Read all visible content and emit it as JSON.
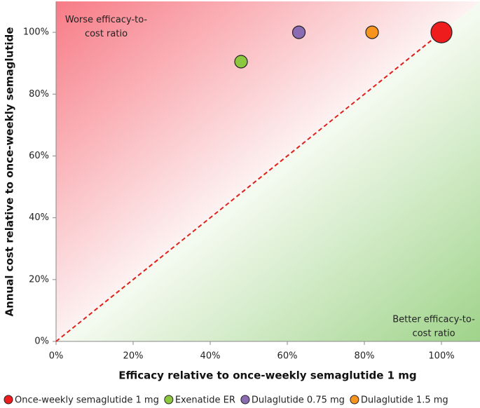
{
  "chart_data": {
    "type": "scatter",
    "x_label": "Efficacy relative to once-weekly semaglutide 1 mg",
    "y_label": "Annual cost relative to once-weekly semaglutide",
    "xlim": [
      0,
      110
    ],
    "ylim": [
      0,
      110
    ],
    "xticks": [
      {
        "value": 0,
        "label": "0%"
      },
      {
        "value": 20,
        "label": "20%"
      },
      {
        "value": 40,
        "label": "40%"
      },
      {
        "value": 60,
        "label": "60%"
      },
      {
        "value": 80,
        "label": "80%"
      },
      {
        "value": 100,
        "label": "100%"
      }
    ],
    "yticks": [
      {
        "value": 0,
        "label": "0%"
      },
      {
        "value": 20,
        "label": "20%"
      },
      {
        "value": 40,
        "label": "40%"
      },
      {
        "value": 60,
        "label": "60%"
      },
      {
        "value": 80,
        "label": "80%"
      },
      {
        "value": 100,
        "label": "100%"
      }
    ],
    "series": [
      {
        "name": "Once-weekly semaglutide 1 mg",
        "color": "#ee1c1c",
        "size": 15,
        "x": [
          100
        ],
        "values": [
          100
        ]
      },
      {
        "name": "Exenatide ER",
        "color": "#8dc63f",
        "size": 9,
        "x": [
          48
        ],
        "values": [
          90.5
        ]
      },
      {
        "name": "Dulaglutide 0.75 mg",
        "color": "#8b6bb1",
        "size": 9,
        "x": [
          63
        ],
        "values": [
          100
        ]
      },
      {
        "name": "Dulaglutide 1.5 mg",
        "color": "#f7941d",
        "size": 9,
        "x": [
          82
        ],
        "values": [
          100
        ]
      }
    ],
    "reference_line": {
      "x": [
        0,
        100
      ],
      "y": [
        0,
        100
      ],
      "color": "#e0201b"
    },
    "annotations": [
      {
        "lines": [
          "Worse efficacy-to-",
          "cost ratio"
        ],
        "x": 13,
        "y": 104
      },
      {
        "lines": [
          "Better efficacy-to-",
          "cost ratio"
        ],
        "x": 98,
        "y": 7
      }
    ]
  }
}
